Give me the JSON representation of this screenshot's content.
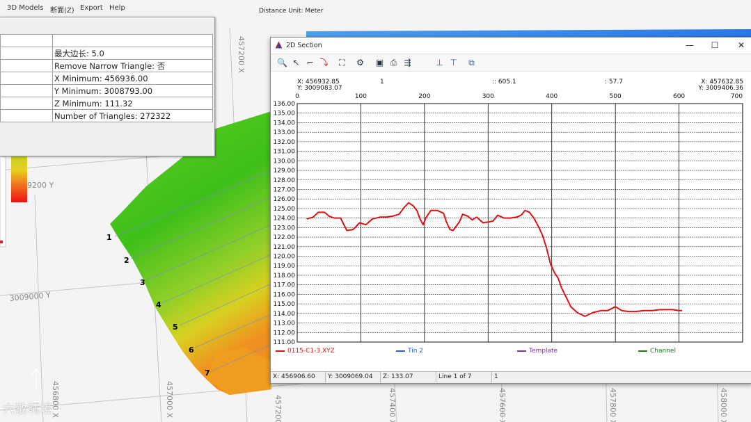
{
  "menu": {
    "items": [
      {
        "label": "3D Models"
      },
      {
        "label": "断面(Z)"
      },
      {
        "label": "Export"
      },
      {
        "label": "Help"
      }
    ]
  },
  "properties": {
    "rows": [
      {
        "value": ""
      },
      {
        "value": "最大边长: 5.0"
      },
      {
        "value": "Remove Narrow Triangle: 否"
      },
      {
        "value": "X Minimum: 456936.00"
      },
      {
        "value": "Y Minimum: 3008793.00"
      },
      {
        "value": "Z Minimum: 111.32"
      },
      {
        "value": "Number of Triangles: 272322"
      }
    ]
  },
  "map": {
    "distance_unit": "Distance Unit: Meter",
    "grid_labels": [
      {
        "text": "457200 X"
      },
      {
        "text": "3009000 Y"
      },
      {
        "text": "9200 Y"
      },
      {
        "text": "456800 X"
      },
      {
        "text": "457000 X"
      },
      {
        "text": "457200 X"
      },
      {
        "text": "457400 X"
      },
      {
        "text": "457600 X"
      },
      {
        "text": "457800 X"
      },
      {
        "text": "458000 X"
      }
    ],
    "section_numbers": [
      "1",
      "2",
      "3",
      "4",
      "5",
      "6",
      "7"
    ],
    "colors": {
      "green": "#3fbf1a",
      "yellow": "#d8d020",
      "orange": "#f08020",
      "red": "#ee1010",
      "blue": "#2878e8"
    }
  },
  "watermark": "六散晴境",
  "section_window": {
    "title": "2D Section",
    "controls": {
      "minimize": "—",
      "maximize": "☐",
      "close": "✕"
    },
    "toolbar_icons": [
      "zoom-icon",
      "pointer-icon",
      "measure-icon",
      "chart-icon",
      "fit-icon",
      "settings-icon",
      "camera-icon",
      "print-icon",
      "export-icon",
      "arrow-up-icon",
      "arrow-down-icon",
      "copy-icon"
    ],
    "readout": {
      "left_x": "X: 456932.85",
      "left_y": "Y: 3009083.07",
      "mid1": "1",
      "mid2": ":: 605.1",
      "mid3": ": 57.7",
      "right_x": "X: 457632.85",
      "right_y": "Y: 3009406.36"
    },
    "legend": [
      {
        "name": "0115-C1-3.XYZ",
        "color": "#e01010"
      },
      {
        "name": "Tin 2",
        "color": "#2060e0"
      },
      {
        "name": "Template",
        "color": "#8030a0"
      },
      {
        "name": "Channel",
        "color": "#108010"
      }
    ],
    "status": {
      "x": "X: 456906.60",
      "y": "Y: 3009069.04",
      "z": "Z: 133.07",
      "line": "Line 1 of 7",
      "extra": "1"
    }
  },
  "chart_data": {
    "type": "line",
    "xlabel": "",
    "ylabel": "",
    "xlim": [
      0,
      700
    ],
    "ylim": [
      111,
      136
    ],
    "x_ticks": [
      0,
      100,
      200,
      300,
      400,
      500,
      600,
      700
    ],
    "y_ticks": [
      111.0,
      112.0,
      113.0,
      114.0,
      115.0,
      116.0,
      117.0,
      118.0,
      119.0,
      120.0,
      121.0,
      122.0,
      123.0,
      124.0,
      125.0,
      126.0,
      127.0,
      128.0,
      129.0,
      130.0,
      131.0,
      132.0,
      133.0,
      134.0,
      135.0,
      136.0
    ],
    "x_grid": [
      100,
      200,
      300,
      400,
      500,
      600
    ],
    "grid": true,
    "legend_position": "bottom",
    "series": [
      {
        "name": "0115-C1-3.XYZ",
        "color": "#e01010",
        "x": [
          15,
          25,
          33,
          43,
          50,
          58,
          68,
          78,
          88,
          98,
          108,
          118,
          130,
          140,
          150,
          160,
          168,
          175,
          182,
          188,
          193,
          198,
          202,
          210,
          220,
          230,
          235,
          240,
          245,
          255,
          260,
          268,
          275,
          282,
          292,
          302,
          308,
          315,
          325,
          335,
          345,
          352,
          358,
          365,
          372,
          380,
          386,
          392,
          398,
          404,
          410,
          416,
          422,
          430,
          440,
          452,
          465,
          478,
          488,
          500,
          510,
          520,
          532,
          545,
          558,
          570,
          580,
          590,
          600,
          605
        ],
        "y": [
          123.9,
          124.1,
          124.6,
          124.6,
          124.2,
          124.0,
          124.0,
          122.7,
          122.8,
          123.5,
          123.3,
          123.9,
          124.1,
          124.1,
          124.2,
          124.4,
          125.1,
          125.6,
          125.3,
          124.8,
          123.9,
          123.3,
          124.0,
          124.8,
          124.8,
          124.5,
          123.5,
          122.8,
          122.7,
          123.6,
          124.4,
          124.2,
          123.8,
          124.1,
          123.5,
          123.6,
          123.7,
          124.3,
          124.0,
          124.0,
          124.1,
          124.3,
          124.8,
          124.6,
          124.0,
          123.0,
          122.1,
          120.8,
          119.2,
          118.3,
          117.7,
          116.6,
          115.8,
          114.7,
          114.1,
          113.7,
          114.1,
          114.3,
          114.3,
          114.7,
          114.3,
          114.2,
          114.2,
          114.3,
          114.3,
          114.4,
          114.4,
          114.4,
          114.3,
          114.3
        ]
      }
    ]
  }
}
